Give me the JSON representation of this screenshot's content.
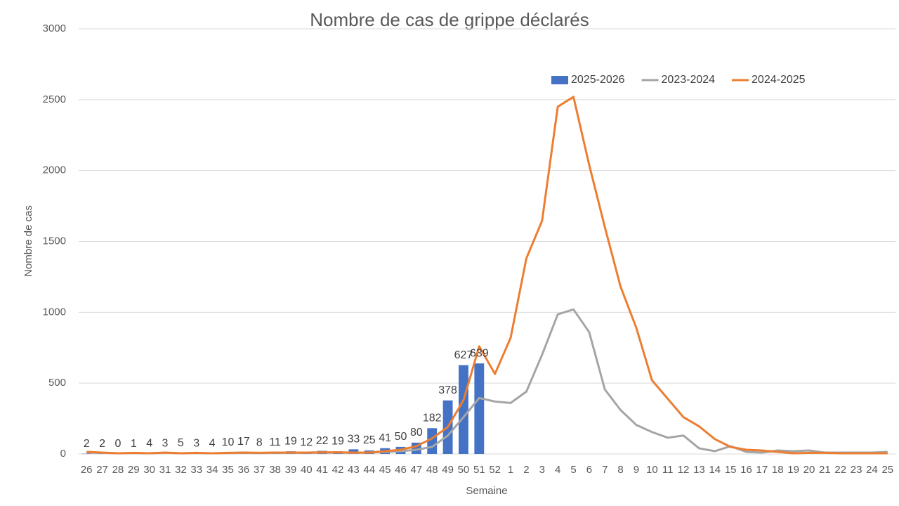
{
  "chart_data": {
    "type": "combo",
    "title": "Nombre de cas de grippe déclarés",
    "x_label": "Semaine",
    "y_label": "Nombre de cas",
    "categories": [
      "26",
      "27",
      "28",
      "29",
      "30",
      "31",
      "32",
      "33",
      "34",
      "35",
      "36",
      "37",
      "38",
      "39",
      "40",
      "41",
      "42",
      "43",
      "44",
      "45",
      "46",
      "47",
      "48",
      "49",
      "50",
      "51",
      "52",
      "1",
      "2",
      "3",
      "4",
      "5",
      "6",
      "7",
      "8",
      "9",
      "10",
      "11",
      "12",
      "13",
      "14",
      "15",
      "16",
      "17",
      "18",
      "19",
      "20",
      "21",
      "22",
      "23",
      "24",
      "25"
    ],
    "ylim": [
      0,
      3000
    ],
    "yticks": [
      0,
      500,
      1000,
      1500,
      2000,
      2500,
      3000
    ],
    "grid": true,
    "legend": "top",
    "series": [
      {
        "name": "2025-2026",
        "type": "bar",
        "color": "#4472c4",
        "data_labels": true,
        "values": [
          2,
          2,
          0,
          1,
          4,
          3,
          5,
          3,
          4,
          10,
          17,
          8,
          11,
          19,
          12,
          22,
          19,
          33,
          25,
          41,
          50,
          80,
          182,
          378,
          627,
          639,
          null,
          null,
          null,
          null,
          null,
          null,
          null,
          null,
          null,
          null,
          null,
          null,
          null,
          null,
          null,
          null,
          null,
          null,
          null,
          null,
          null,
          null,
          null,
          null,
          null,
          null
        ]
      },
      {
        "name": "2023-2024",
        "type": "line",
        "color": "#a5a5a5",
        "values": [
          10,
          8,
          5,
          6,
          5,
          8,
          5,
          6,
          5,
          6,
          8,
          6,
          8,
          8,
          8,
          10,
          10,
          8,
          10,
          15,
          20,
          30,
          50,
          130,
          260,
          395,
          370,
          360,
          440,
          700,
          985,
          1020,
          860,
          455,
          310,
          205,
          155,
          115,
          130,
          40,
          20,
          55,
          15,
          10,
          25,
          20,
          25,
          10,
          10,
          10,
          10,
          15
        ]
      },
      {
        "name": "2024-2025",
        "type": "line",
        "color": "#ed7d31",
        "values": [
          15,
          10,
          5,
          8,
          5,
          10,
          5,
          8,
          5,
          8,
          10,
          8,
          10,
          10,
          10,
          12,
          12,
          10,
          10,
          20,
          30,
          55,
          110,
          190,
          380,
          760,
          565,
          820,
          1380,
          1645,
          2450,
          2520,
          2040,
          1600,
          1180,
          890,
          520,
          390,
          260,
          195,
          105,
          50,
          30,
          25,
          15,
          5,
          8,
          8,
          5,
          5,
          5,
          5
        ]
      }
    ]
  }
}
